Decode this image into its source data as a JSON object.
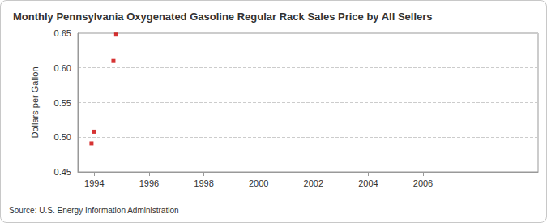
{
  "chart_data": {
    "type": "scatter",
    "title": "Monthly Pennsylvania Oxygenated Gasoline Regular Rack Sales Price by All Sellers",
    "y_label": "Dollars per Gallon",
    "annotations": [
      "Source: U.S. Energy Information Administration"
    ],
    "x": [
      1993.9,
      1994.0,
      1994.7,
      1994.8
    ],
    "values": [
      0.491,
      0.508,
      0.61,
      0.648
    ],
    "color": "#cc0000",
    "marker": "square",
    "xlim": [
      1993.4,
      2010.2
    ],
    "xticks": [
      1994,
      1996,
      1998,
      2000,
      2002,
      2004,
      2006
    ],
    "ylim": [
      0.45,
      0.65
    ],
    "yticks": [
      0.45,
      {
        "value": 0.5,
        "label": "0.50"
      },
      0.55,
      {
        "value": 0.6,
        "label": "0.60"
      },
      0.65
    ],
    "grid": true
  }
}
